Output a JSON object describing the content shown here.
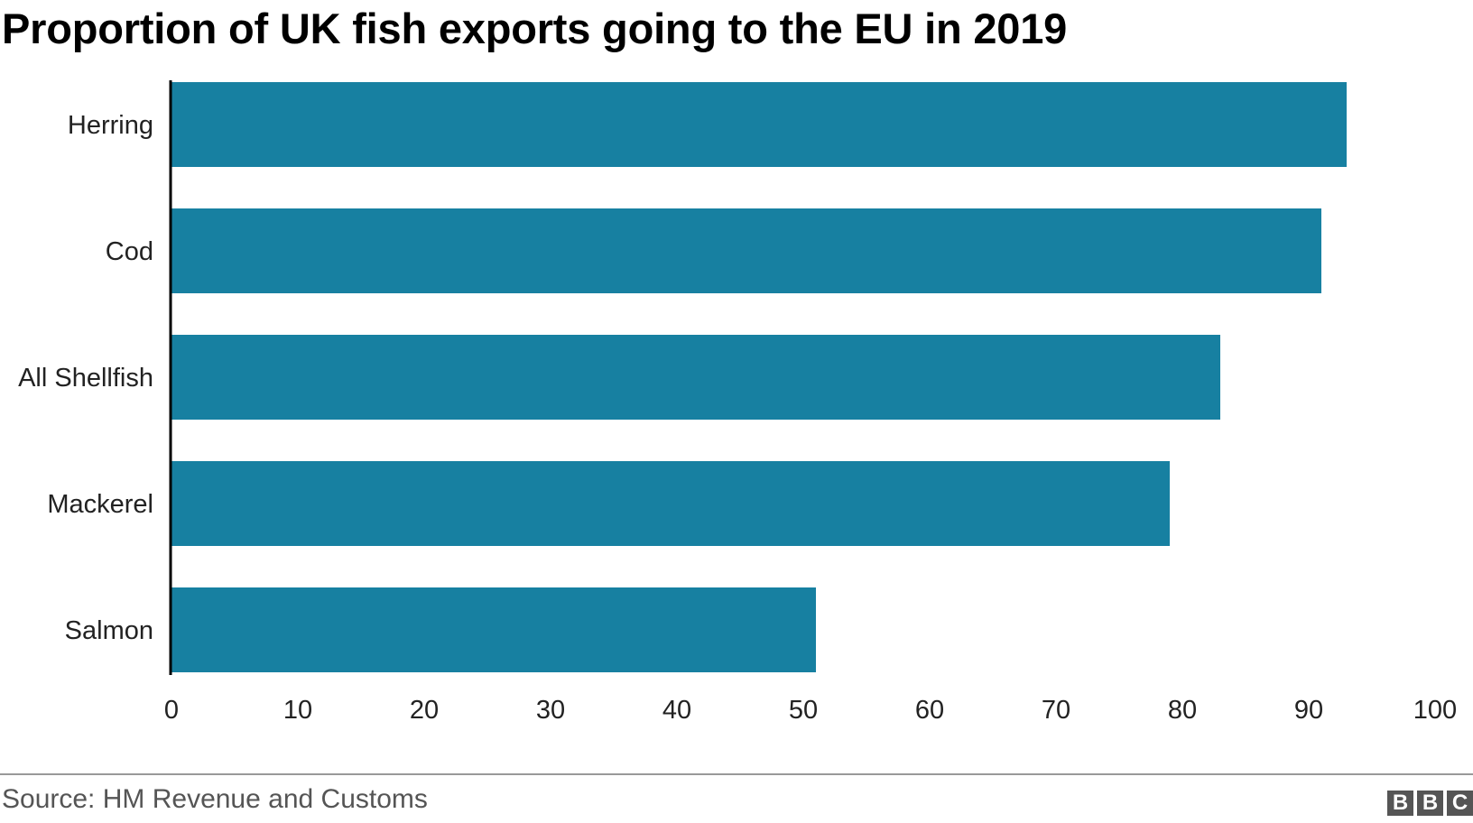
{
  "title": "Proportion of UK fish exports going to the EU in 2019",
  "source": "Source: HM Revenue and Customs",
  "logo": [
    "B",
    "B",
    "C"
  ],
  "colors": {
    "bar": "#1780a1",
    "axis": "#000000",
    "text": "#222222"
  },
  "chart_data": {
    "type": "bar",
    "orientation": "horizontal",
    "title": "Proportion of UK fish exports going to the EU in 2019",
    "categories": [
      "Herring",
      "Cod",
      "All Shellfish",
      "Mackerel",
      "Salmon"
    ],
    "values": [
      93,
      91,
      83,
      79,
      51
    ],
    "xlim": [
      0,
      100
    ],
    "xticks": [
      "0",
      "10",
      "20",
      "30",
      "40",
      "50",
      "60",
      "70",
      "80",
      "90",
      "100"
    ],
    "xlabel": "",
    "ylabel": "",
    "grid": false
  }
}
